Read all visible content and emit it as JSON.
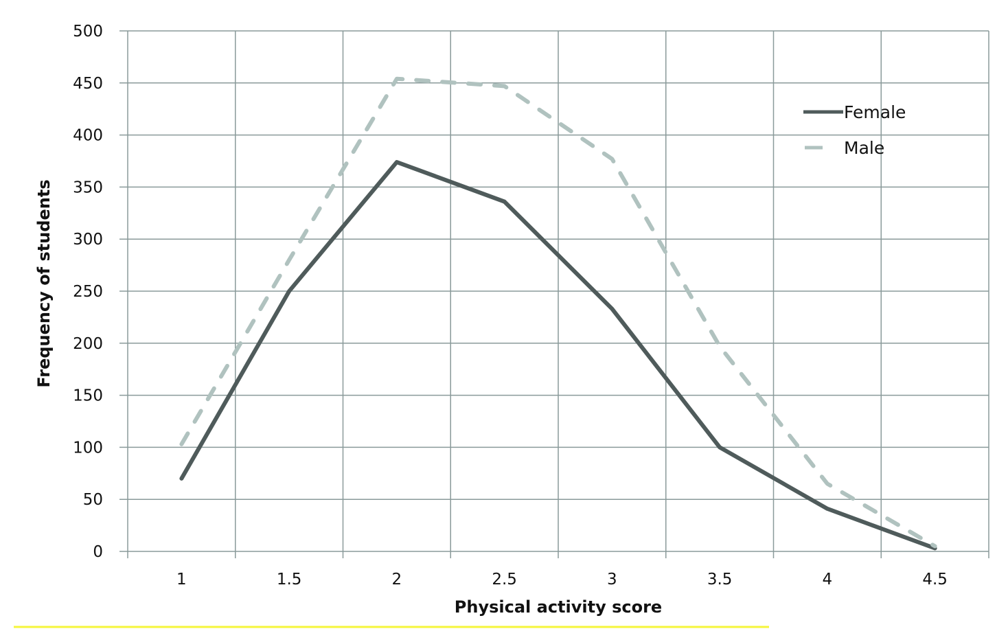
{
  "chart_data": {
    "type": "line",
    "title": "",
    "xlabel": "Physical activity score",
    "ylabel": "Frequency of students",
    "categories": [
      "1",
      "1.5",
      "2",
      "2.5",
      "3",
      "3.5",
      "4",
      "4.5"
    ],
    "ylim": [
      0,
      500
    ],
    "yticks": [
      "0",
      "50",
      "100",
      "150",
      "200",
      "250",
      "300",
      "350",
      "400",
      "450",
      "500"
    ],
    "grid": true,
    "legend_position": "top-right",
    "series": [
      {
        "name": "Female",
        "values": [
          70,
          250,
          374,
          336,
          233,
          100,
          41,
          3
        ],
        "color": "#4f5b5b",
        "style": "solid"
      },
      {
        "name": "Male",
        "values": [
          103,
          280,
          454,
          447,
          377,
          197,
          65,
          5
        ],
        "color": "#b0c2bf",
        "style": "dashed"
      }
    ]
  },
  "colors": {
    "grid": "#8a9a9a",
    "highlight": "#f5f53a"
  }
}
